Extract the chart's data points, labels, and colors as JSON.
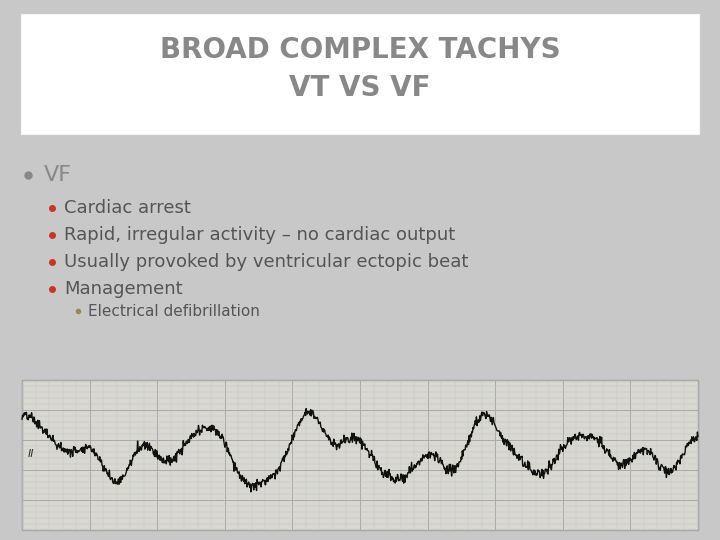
{
  "title_line1": "BROAD COMPLEX TACHYS",
  "title_line2": "VT VS VF",
  "title_color": "#888888",
  "title_fontsize": 20,
  "title_box_color": "#ffffff",
  "title_box_edge": "#cccccc",
  "slide_bg": "#c8c8c8",
  "bullet_main": "VF",
  "bullet_main_fontsize": 16,
  "bullet_main_color": "#888888",
  "sub_bullets": [
    "Cardiac arrest",
    "Rapid, irregular activity – no cardiac output",
    "Usually provoked by ventricular ectopic beat",
    "Management"
  ],
  "sub_bullet_color": "#555555",
  "sub_bullet_fontsize": 13,
  "sub_bullet_dot_color": "#cc3322",
  "sub_sub_bullet": "Electrical defibrillation",
  "sub_sub_fontsize": 11,
  "sub_sub_color": "#555555",
  "sub_sub_dot_color": "#998855",
  "ecg_bg": "#d8d8d0",
  "ecg_grid_major_color": "#aaaaaa",
  "ecg_grid_minor_color": "#c4c4c4",
  "ecg_line_color": "#111111",
  "ecg_label": "II"
}
